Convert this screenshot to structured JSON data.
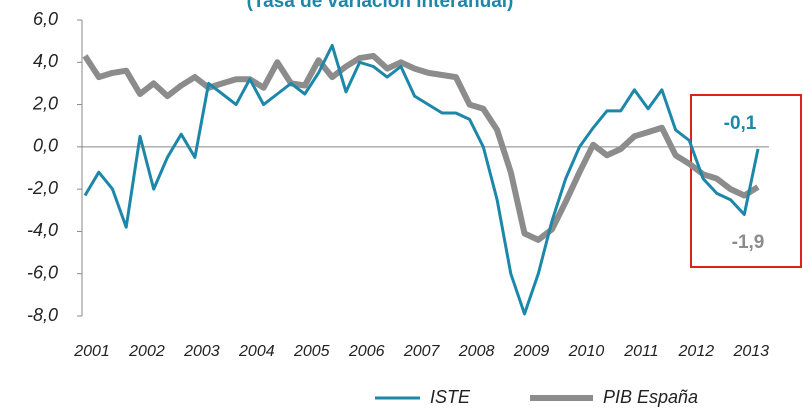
{
  "chart_data": {
    "type": "line",
    "subtitle": "(Tasa de variación interanual)",
    "x": [
      2001,
      2001.25,
      2001.5,
      2001.75,
      2002,
      2002.25,
      2002.5,
      2002.75,
      2003,
      2003.25,
      2003.5,
      2003.75,
      2004,
      2004.25,
      2004.5,
      2004.75,
      2005,
      2005.25,
      2005.5,
      2005.75,
      2006,
      2006.25,
      2006.5,
      2006.75,
      2007,
      2007.25,
      2007.5,
      2007.75,
      2008,
      2008.25,
      2008.5,
      2008.75,
      2009,
      2009.25,
      2009.5,
      2009.75,
      2010,
      2010.25,
      2010.5,
      2010.75,
      2011,
      2011.25,
      2011.5,
      2011.75,
      2012,
      2012.25,
      2012.5,
      2012.75,
      2013,
      2013.25
    ],
    "series": [
      {
        "name": "ISTE",
        "color": "#1c87a8",
        "values": [
          -2.3,
          -1.2,
          -2.0,
          -3.8,
          0.5,
          -2.0,
          -0.5,
          0.6,
          -0.5,
          3.0,
          2.5,
          2.0,
          3.2,
          2.0,
          2.5,
          3.0,
          2.5,
          3.5,
          4.8,
          2.6,
          4.0,
          3.8,
          3.3,
          3.8,
          2.4,
          2.0,
          1.6,
          1.6,
          1.3,
          0.0,
          -2.5,
          -6.0,
          -7.9,
          -6.0,
          -3.5,
          -1.5,
          0.0,
          0.9,
          1.7,
          1.7,
          2.7,
          1.8,
          2.7,
          0.8,
          0.3,
          -1.5,
          -2.2,
          -2.5,
          -3.2,
          -0.1
        ]
      },
      {
        "name": "PIB España",
        "color": "#8c8c8c",
        "values": [
          4.3,
          3.3,
          3.5,
          3.6,
          2.5,
          3.0,
          2.4,
          2.9,
          3.3,
          2.8,
          3.0,
          3.2,
          3.2,
          2.8,
          4.0,
          3.0,
          2.9,
          4.1,
          3.3,
          3.8,
          4.2,
          4.3,
          3.7,
          4.0,
          3.7,
          3.5,
          3.4,
          3.3,
          2.0,
          1.8,
          0.8,
          -1.2,
          -4.1,
          -4.4,
          -3.9,
          -2.6,
          -1.2,
          0.1,
          -0.4,
          -0.1,
          0.5,
          0.7,
          0.9,
          -0.4,
          -0.8,
          -1.3,
          -1.5,
          -2.0,
          -2.3,
          -1.9
        ]
      }
    ],
    "annotations": [
      {
        "text": "-0,1"
      },
      {
        "text": "-1,9"
      }
    ],
    "xlim": [
      2000.945,
      2013.45
    ],
    "xticks": [
      2001,
      2002,
      2003,
      2004,
      2005,
      2006,
      2007,
      2008,
      2009,
      2010,
      2011,
      2012,
      2013
    ],
    "ylim": [
      -8,
      6
    ],
    "yticks": [
      {
        "value": -8,
        "label": "-8,0"
      },
      {
        "value": -6,
        "label": "-6,0"
      },
      {
        "value": -4,
        "label": "-4,0"
      },
      {
        "value": -2,
        "label": "-2,0"
      },
      {
        "value": 0,
        "label": "0,0"
      },
      {
        "value": 2,
        "label": "2,0"
      },
      {
        "value": 4,
        "label": "4,0"
      },
      {
        "value": 6,
        "label": "6,0"
      }
    ],
    "legend": "bottom"
  }
}
